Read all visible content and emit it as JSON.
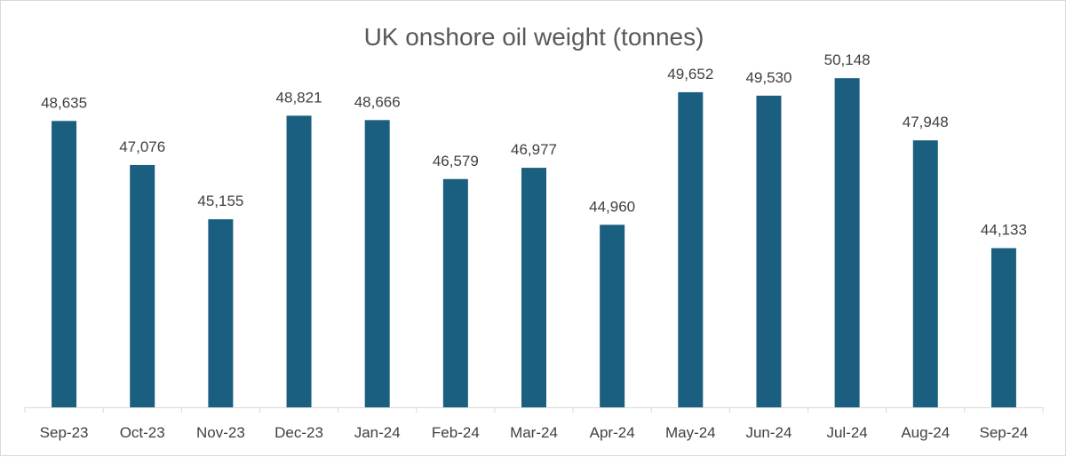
{
  "chart_data": {
    "type": "bar",
    "title": "UK onshore oil weight (tonnes)",
    "categories": [
      "Sep-23",
      "Oct-23",
      "Nov-23",
      "Dec-23",
      "Jan-24",
      "Feb-24",
      "Mar-24",
      "Apr-24",
      "May-24",
      "Jun-24",
      "Jul-24",
      "Aug-24",
      "Sep-24"
    ],
    "values": [
      48635,
      47076,
      45155,
      48821,
      48666,
      46579,
      46977,
      44960,
      49652,
      49530,
      50148,
      47948,
      44133
    ],
    "value_labels": [
      "48,635",
      "47,076",
      "45,155",
      "48,821",
      "48,666",
      "46,579",
      "46,977",
      "44,960",
      "49,652",
      "49,530",
      "50,148",
      "47,948",
      "44,133"
    ],
    "xlabel": "",
    "ylabel": "",
    "ylim": [
      38500,
      51000
    ],
    "y_axis_visible": false,
    "grid": false,
    "legend": "none",
    "colors": {
      "bar": "#1a5f80",
      "axis": "#d9d9d9",
      "text": "#404040",
      "title": "#595959"
    }
  }
}
